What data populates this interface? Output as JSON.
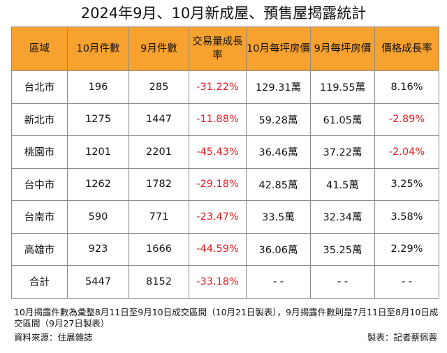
{
  "title": "2024年9月、10月新成屋、預售屋揭露統計",
  "colors": {
    "header_bg": "#f7a12f",
    "negative": "#e02020"
  },
  "table": {
    "headers": [
      "區域",
      "10月件數",
      "9月件數",
      "交易量成長率",
      "10月每坪房價",
      "9月每坪房價",
      "價格成長率"
    ],
    "rows": [
      [
        "台北市",
        "196",
        "285",
        "-31.22%",
        "129.31萬",
        "119.55萬",
        "8.16%"
      ],
      [
        "新北市",
        "1275",
        "1447",
        "-11.88%",
        "59.28萬",
        "61.05萬",
        "-2.89%"
      ],
      [
        "桃園市",
        "1201",
        "2201",
        "-45.43%",
        "36.46萬",
        "37.22萬",
        "-2.04%"
      ],
      [
        "台中市",
        "1262",
        "1782",
        "-29.18%",
        "42.85萬",
        "41.5萬",
        "3.25%"
      ],
      [
        "台南市",
        "590",
        "771",
        "-23.47%",
        "33.5萬",
        "32.34萬",
        "3.58%"
      ],
      [
        "高雄市",
        "923",
        "1666",
        "-44.59%",
        "36.06萬",
        "35.25萬",
        "2.29%"
      ],
      [
        "合計",
        "5447",
        "8152",
        "-33.18%",
        "- -",
        "- -",
        "- -"
      ]
    ]
  },
  "footnote": "10月揭露件數為彙整8月11日至9月10日成交區間（10月21日製表），9月揭露件數則是7月11日至8月10日成交區間（9月27日製表）",
  "source": "資料來源：住展雜誌",
  "credit": "製表：記者蔡佩蓉"
}
